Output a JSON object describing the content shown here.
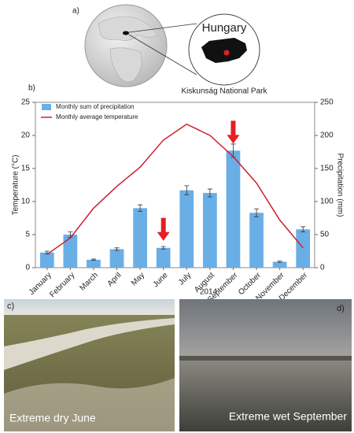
{
  "map": {
    "label": "a)",
    "country": "Hungary",
    "park": "Kiskunság National Park"
  },
  "chart_data": {
    "type": "combo",
    "panel_label": "b)",
    "x_label": "2014",
    "y_label": "Temperature (°C)",
    "y2_label": "Precipitation (mm)",
    "categories": [
      "January",
      "February",
      "March",
      "April",
      "May",
      "June",
      "July",
      "August",
      "September",
      "October",
      "November",
      "December"
    ],
    "series": [
      {
        "name": "Monthly sum of precipitation",
        "type": "bar",
        "axis": "y2",
        "color": "#6aaee6",
        "values": [
          23,
          50,
          12,
          28,
          90,
          30,
          117,
          113,
          177,
          83,
          9,
          58
        ],
        "errors": [
          2,
          4,
          1,
          2,
          5,
          2,
          7,
          6,
          10,
          6,
          1,
          4
        ]
      },
      {
        "name": "Monthly average temperature",
        "type": "line",
        "color": "#cc1f2f",
        "values": [
          2,
          4.5,
          9,
          12.3,
          15.2,
          19.3,
          21.7,
          20,
          16.8,
          12.8,
          7.2,
          3
        ]
      }
    ],
    "ylim": [
      0,
      25
    ],
    "yticks": [
      0,
      5,
      10,
      15,
      20,
      25
    ],
    "y2lim": [
      0,
      250
    ],
    "y2ticks": [
      0,
      50,
      100,
      150,
      200,
      250
    ],
    "legend": "upper left"
  },
  "photos": [
    {
      "label": "c)",
      "caption": "Extreme dry June"
    },
    {
      "label": "d)",
      "caption": "Extreme wet September"
    }
  ]
}
